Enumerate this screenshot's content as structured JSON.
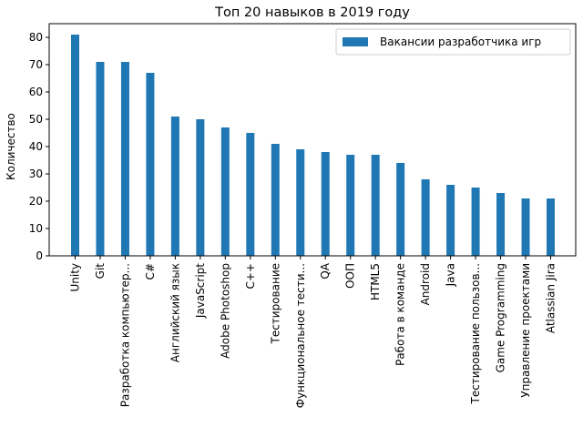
{
  "chart_data": {
    "type": "bar",
    "title": "Топ 20 навыков в 2019 году",
    "xlabel": "",
    "ylabel": "Количество",
    "ylim": [
      0,
      85
    ],
    "yticks": [
      0,
      10,
      20,
      30,
      40,
      50,
      60,
      70,
      80
    ],
    "grid": false,
    "legend_position": "top-right",
    "categories": [
      "Unity",
      "Git",
      "Разработка компьютер...",
      "C#",
      "Английский язык",
      "JavaScript",
      "Adobe Photoshop",
      "C++",
      "Тестирование",
      "Функциональное тести...",
      "QA",
      "ООП",
      "HTML5",
      "Работа в команде",
      "Android",
      "Java",
      "Тестирование пользов...",
      "Game Programming",
      "Управление проектами",
      "Atlassian Jira"
    ],
    "series": [
      {
        "name": "Вакансии разработчика игр",
        "color": "#1f77b4",
        "values": [
          81,
          71,
          71,
          67,
          51,
          50,
          47,
          45,
          41,
          39,
          38,
          37,
          37,
          34,
          28,
          26,
          25,
          23,
          21,
          21
        ]
      }
    ]
  }
}
